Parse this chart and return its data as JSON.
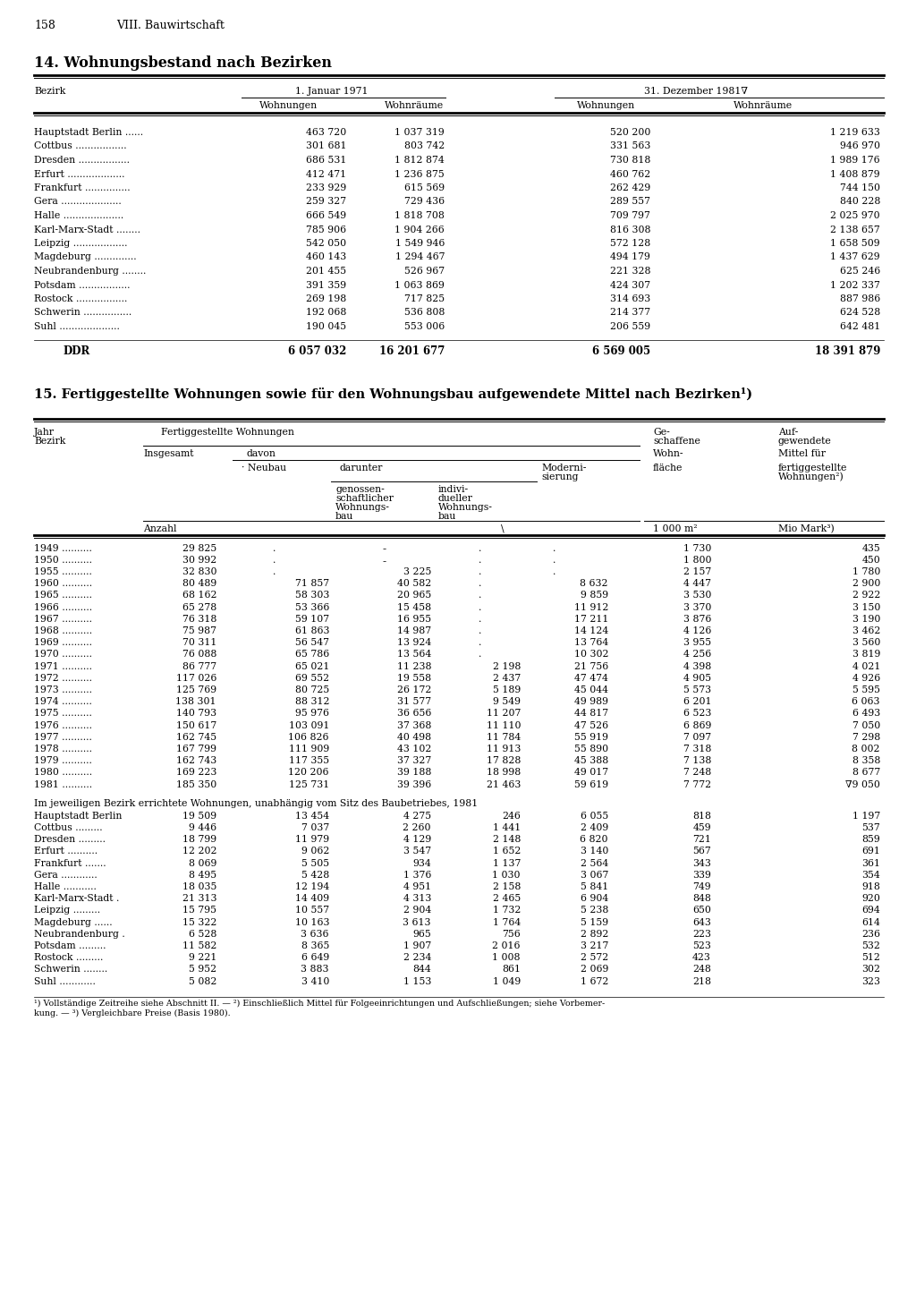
{
  "page_number": "158",
  "chapter": "VIII. Bauwirtschaft",
  "table1_title": "14. Wohnungsbestand nach Bezirken",
  "table1_rows": [
    [
      "Hauptstadt Berlin ......",
      "463 720",
      "1 037 319",
      "520 200",
      "1 219 633"
    ],
    [
      "Cottbus .................",
      "301 681",
      "803 742",
      "331 563",
      "946 970"
    ],
    [
      "Dresden .................",
      "686 531",
      "1 812 874",
      "730 818",
      "1 989 176"
    ],
    [
      "Erfurt ...................",
      "412 471",
      "1 236 875",
      "460 762",
      "1 408 879"
    ],
    [
      "Frankfurt ...............",
      "233 929",
      "615 569",
      "262 429",
      "744 150"
    ],
    [
      "Gera ....................",
      "259 327",
      "729 436",
      "289 557",
      "840 228"
    ],
    [
      "Halle ....................",
      "666 549",
      "1 818 708",
      "709 797",
      "2 025 970"
    ],
    [
      "Karl-Marx-Stadt ........",
      "785 906",
      "1 904 266",
      "816 308",
      "2 138 657"
    ],
    [
      "Leipzig ..................",
      "542 050",
      "1 549 946",
      "572 128",
      "1 658 509"
    ],
    [
      "Magdeburg ..............",
      "460 143",
      "1 294 467",
      "494 179",
      "1 437 629"
    ],
    [
      "Neubrandenburg ........",
      "201 455",
      "526 967",
      "221 328",
      "625 246"
    ],
    [
      "Potsdam .................",
      "391 359",
      "1 063 869",
      "424 307",
      "1 202 337"
    ],
    [
      "Rostock .................",
      "269 198",
      "717 825",
      "314 693",
      "887 986"
    ],
    [
      "Schwerin ................",
      "192 068",
      "536 808",
      "214 377",
      "624 528"
    ],
    [
      "Suhl ....................",
      "190 045",
      "553 006",
      "206 559",
      "642 481"
    ]
  ],
  "table1_total": [
    "DDR",
    "6 057 032",
    "16 201 677",
    "6 569 005",
    "18 391 879"
  ],
  "table2_title": "15. Fertiggestellte Wohnungen sowie für den Wohnungsbau aufgewendete Mittel nach Bezirken¹)",
  "table2_year_rows": [
    [
      "1949 ..........",
      "29 825",
      ".",
      "-",
      ".",
      ".",
      "1 730",
      "435"
    ],
    [
      "1950 ..........",
      "30 992",
      ".",
      "-",
      ".",
      ".",
      "1 800",
      "450"
    ],
    [
      "1955 ..........",
      "32 830",
      ".",
      "3 225",
      ".",
      ".",
      "2 157",
      "1 780"
    ],
    [
      "1960 ..........",
      "80 489",
      "71 857",
      "40 582",
      ".",
      "8 632",
      "4 447",
      "2 900"
    ],
    [
      "1965 ..........",
      "68 162",
      "58 303",
      "20 965",
      ".",
      "9 859",
      "3 530",
      "2 922"
    ],
    [
      "1966 ..........",
      "65 278",
      "53 366",
      "15 458",
      ".",
      "11 912",
      "3 370",
      "3 150"
    ],
    [
      "1967 ..........",
      "76 318",
      "59 107",
      "16 955",
      ".",
      "17 211",
      "3 876",
      "3 190"
    ],
    [
      "1968 ..........",
      "75 987",
      "61 863",
      "14 987",
      ".",
      "14 124",
      "4 126",
      "3 462"
    ],
    [
      "1969 ..........",
      "70 311",
      "56 547",
      "13 924",
      ".",
      "13 764",
      "3 955",
      "3 560"
    ],
    [
      "1970 ..........",
      "76 088",
      "65 786",
      "13 564",
      ".",
      "10 302",
      "4 256",
      "3 819"
    ],
    [
      "1971 ..........",
      "86 777",
      "65 021",
      "11 238",
      "2 198",
      "21 756",
      "4 398",
      "4 021"
    ],
    [
      "1972 ..........",
      "117 026",
      "69 552",
      "19 558",
      "2 437",
      "47 474",
      "4 905",
      "4 926"
    ],
    [
      "1973 ..........",
      "125 769",
      "80 725",
      "26 172",
      "5 189",
      "45 044",
      "5 573",
      "5 595"
    ],
    [
      "1974 ..........",
      "138 301",
      "88 312",
      "31 577",
      "9 549",
      "49 989",
      "6 201",
      "6 063"
    ],
    [
      "1975 ..........",
      "140 793",
      "95 976",
      "36 656",
      "11 207",
      "44 817",
      "6 523",
      "6 493"
    ],
    [
      "1976 ..........",
      "150 617",
      "103 091",
      "37 368",
      "11 110",
      "47 526",
      "6 869",
      "7 050"
    ],
    [
      "1977 ..........",
      "162 745",
      "106 826",
      "40 498",
      "11 784",
      "55 919",
      "7 097",
      "7 298"
    ],
    [
      "1978 ..........",
      "167 799",
      "111 909",
      "43 102",
      "11 913",
      "55 890",
      "7 318",
      "8 002"
    ],
    [
      "1979 ..........",
      "162 743",
      "117 355",
      "37 327",
      "17 828",
      "45 388",
      "7 138",
      "8 358"
    ],
    [
      "1980 ..........",
      "169 223",
      "120 206",
      "39 188",
      "18 998",
      "49 017",
      "7 248",
      "8 677"
    ],
    [
      "1981 ..........",
      "185 350",
      "125 731",
      "39 396",
      "21 463",
      "59 619",
      "7 772",
      "∇9 050"
    ]
  ],
  "bezirk_section_header": "Im jeweiligen Bezirk errichtete Wohnungen, unabhängig vom Sitz des Baubetriebes, 1981",
  "table2_bezirk_rows": [
    [
      "Hauptstadt Berlin",
      "19 509",
      "13 454",
      "4 275",
      "246",
      "6 055",
      "818",
      "1 197"
    ],
    [
      "Cottbus .........",
      "9 446",
      "7 037",
      "2 260",
      "1 441",
      "2 409",
      "459",
      "537"
    ],
    [
      "Dresden .........",
      "18 799",
      "11 979",
      "4 129",
      "2 148",
      "6 820",
      "721",
      "859"
    ],
    [
      "Erfurt ..........",
      "12 202",
      "9 062",
      "3 547",
      "1 652",
      "3 140",
      "567",
      "691"
    ],
    [
      "Frankfurt .......",
      "8 069",
      "5 505",
      "934",
      "1 137",
      "2 564",
      "343",
      "361"
    ],
    [
      "Gera ............",
      "8 495",
      "5 428",
      "1 376",
      "1 030",
      "3 067",
      "339",
      "354"
    ],
    [
      "Halle ...........",
      "18 035",
      "12 194",
      "4 951",
      "2 158",
      "5 841",
      "749",
      "918"
    ],
    [
      "Karl-Marx-Stadt .",
      "21 313",
      "14 409",
      "4 313",
      "2 465",
      "6 904",
      "848",
      "920"
    ],
    [
      "Leipzig .........",
      "15 795",
      "10 557",
      "2 904",
      "1 732",
      "5 238",
      "650",
      "694"
    ],
    [
      "Magdeburg ......",
      "15 322",
      "10 163",
      "3 613",
      "1 764",
      "5 159",
      "643",
      "614"
    ],
    [
      "Neubrandenburg .",
      "6 528",
      "3 636",
      "965",
      "756",
      "2 892",
      "223",
      "236"
    ],
    [
      "Potsdam .........",
      "11 582",
      "8 365",
      "1 907",
      "2 016",
      "3 217",
      "523",
      "532"
    ],
    [
      "Rostock .........",
      "9 221",
      "6 649",
      "2 234",
      "1 008",
      "2 572",
      "423",
      "512"
    ],
    [
      "Schwerin ........",
      "5 952",
      "3 883",
      "844",
      "861",
      "2 069",
      "248",
      "302"
    ],
    [
      "Suhl ............",
      "5 082",
      "3 410",
      "1 153",
      "1 049",
      "1 672",
      "218",
      "323"
    ]
  ],
  "footnote1": "¹) Vollständige Zeitreihe siehe Abschnitt II. — ²) Einschließlich Mittel für Folgeeinrichtungen und Aufschließungen; siehe Vorbemer-",
  "footnote2": "kung. — ³) Vergleichbare Preise (Basis 1980)."
}
